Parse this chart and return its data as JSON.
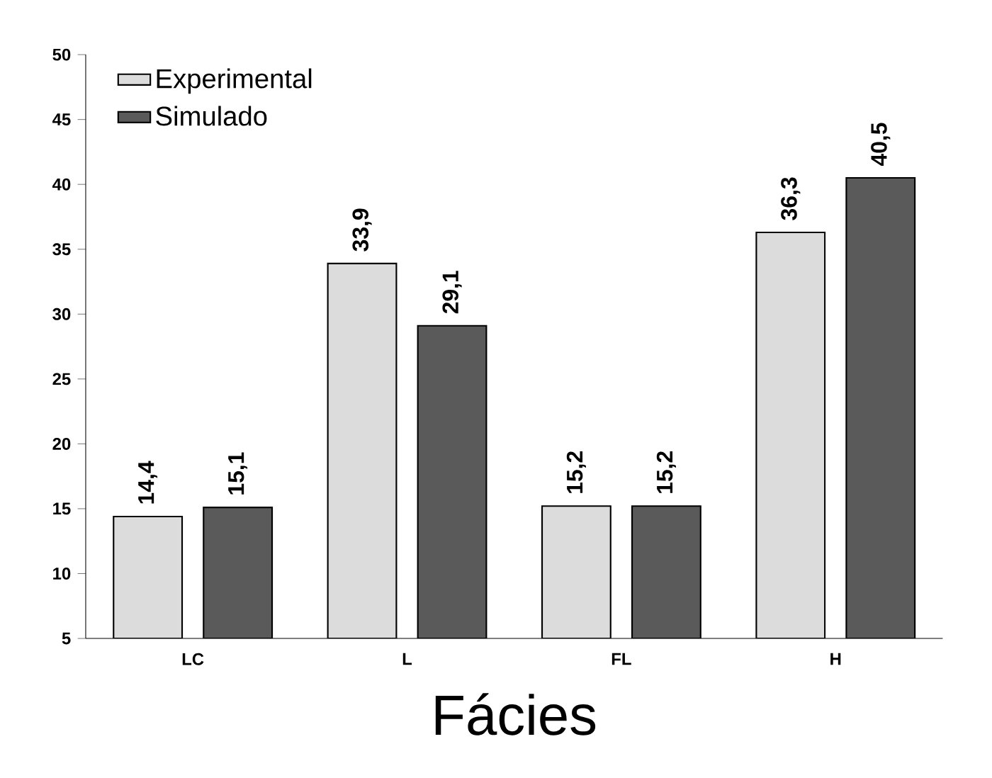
{
  "chart_data": {
    "type": "bar",
    "xlabel": "Fácies",
    "categories": [
      "LC",
      "L",
      "FL",
      "H"
    ],
    "series": [
      {
        "name": "Experimental",
        "color": "#dcdcdc",
        "values": [
          14.4,
          33.9,
          15.2,
          36.3
        ],
        "value_labels": [
          "14,4",
          "33,9",
          "15,2",
          "36,3"
        ]
      },
      {
        "name": "Simulado",
        "color": "#5a5a5a",
        "values": [
          15.1,
          29.1,
          15.2,
          40.5
        ],
        "value_labels": [
          "15,1",
          "29,1",
          "15,2",
          "40,5"
        ]
      }
    ],
    "ylim": [
      5,
      50
    ],
    "yticks": [
      5,
      10,
      15,
      20,
      25,
      30,
      35,
      40,
      45,
      50
    ],
    "legend": "top left",
    "grid": false
  }
}
